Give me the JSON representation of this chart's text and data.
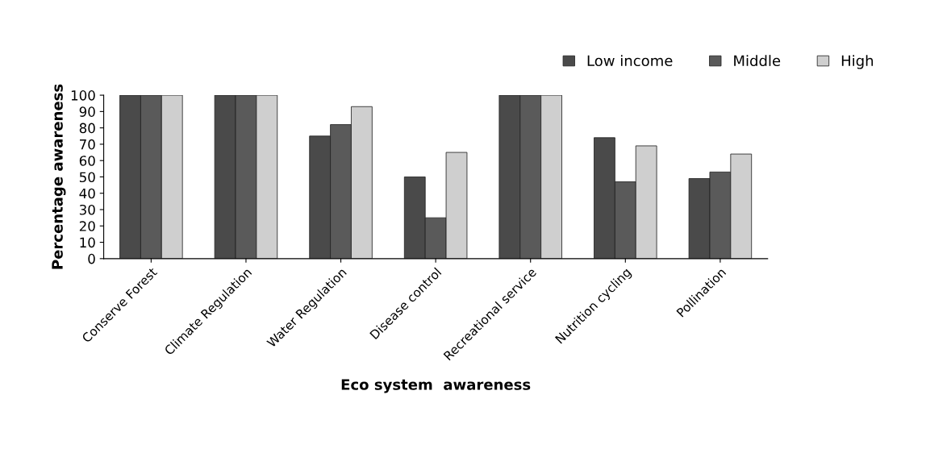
{
  "chart_data": {
    "type": "bar",
    "xlabel": "Eco system  awareness",
    "ylabel": "Percentage awareness",
    "categories": [
      "Conserve Forest",
      "Climate Regulation",
      "Water Regulation",
      "Disease control",
      "Recreational service",
      "Nutrition cycling",
      "Pollination"
    ],
    "series": [
      {
        "name": "Low income",
        "color": "#4a4a4a",
        "values": [
          100,
          100,
          75,
          50,
          100,
          74,
          49
        ]
      },
      {
        "name": "Middle",
        "color": "#5a5a5a",
        "values": [
          100,
          100,
          82,
          25,
          100,
          47,
          53
        ]
      },
      {
        "name": "High",
        "color": "#cfcfcf",
        "values": [
          100,
          100,
          93,
          65,
          100,
          69,
          64
        ]
      }
    ],
    "ylim": [
      0,
      100
    ],
    "yticks": [
      0,
      10,
      20,
      30,
      40,
      50,
      60,
      70,
      80,
      90,
      100
    ],
    "grid": false,
    "legend": "top right"
  }
}
